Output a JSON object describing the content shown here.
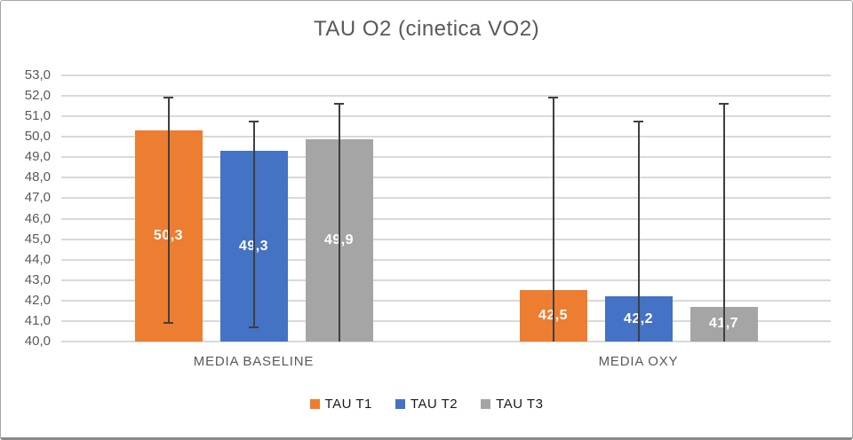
{
  "chart_data": {
    "type": "bar",
    "title": "TAU O2 (cinetica VO2)",
    "categories": [
      "MEDIA BASELINE",
      "MEDIA OXY"
    ],
    "series": [
      {
        "name": "TAU T1",
        "color": "#ED7D31",
        "values": [
          50.3,
          42.5
        ],
        "value_labels": [
          "50,3",
          "42,5"
        ],
        "error_top": [
          51.9,
          51.9
        ],
        "error_bottom": [
          40.9,
          null
        ]
      },
      {
        "name": "TAU T2",
        "color": "#4472C4",
        "values": [
          49.3,
          42.2
        ],
        "value_labels": [
          "49,3",
          "42,2"
        ],
        "error_top": [
          50.75,
          50.75
        ],
        "error_bottom": [
          40.7,
          null
        ]
      },
      {
        "name": "TAU T3",
        "color": "#A5A5A5",
        "values": [
          49.9,
          41.7
        ],
        "value_labels": [
          "49,9",
          "41,7"
        ],
        "error_top": [
          51.6,
          51.6
        ],
        "error_bottom": [
          null,
          null
        ]
      }
    ],
    "ylim": [
      40,
      53
    ],
    "ytick_step": 1,
    "ytick_labels_top_down": [
      "53,0",
      "52,0",
      "51,0",
      "50,0",
      "49,0",
      "48,0",
      "47,0",
      "46,0",
      "45,0",
      "44,0",
      "43,0",
      "42,0",
      "41,0",
      "40,0"
    ],
    "grid": true,
    "legend_position": "bottom",
    "colors": {
      "title_text": "#595959",
      "axis_text": "#595959",
      "category_text": "#595959",
      "gridline": "#D9D9D9",
      "data_label": "#FFFFFF",
      "error_bar": "#3F3F3F",
      "legend_text": "#1A1A1A",
      "background": "#FFFFFF"
    }
  }
}
